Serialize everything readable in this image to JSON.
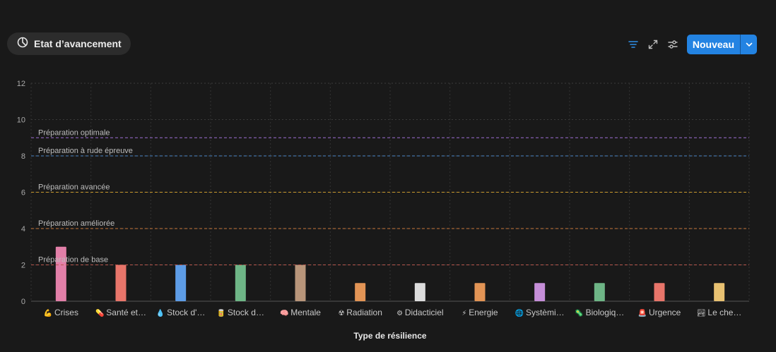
{
  "view": {
    "label": "Etat d’avancement",
    "icon": "pie-chart-icon"
  },
  "toolbar": {
    "filter_icon": "filter-icon",
    "expand_icon": "expand-icon",
    "settings_icon": "sliders-icon",
    "new_label": "Nouveau",
    "new_dropdown_icon": "chevron-down-icon",
    "accent": "#2383e2"
  },
  "chart_data": {
    "type": "bar",
    "xlabel": "Type de résilience",
    "ylabel": "",
    "ylim": [
      0,
      12
    ],
    "yticks": [
      0,
      2,
      4,
      6,
      8,
      10,
      12
    ],
    "grid": true,
    "categories": [
      {
        "icon": "💪",
        "label": "Crises",
        "value": 3,
        "color": "#e27fa8"
      },
      {
        "icon": "💊",
        "label": "Santé et…",
        "value": 2,
        "color": "#e8756a"
      },
      {
        "icon": "💧",
        "label": "Stock d'…",
        "value": 2,
        "color": "#5d9ce6"
      },
      {
        "icon": "🥫",
        "label": "Stock d…",
        "value": 2,
        "color": "#6eb586"
      },
      {
        "icon": "🧠",
        "label": "Mentale",
        "value": 2,
        "color": "#b8957a"
      },
      {
        "icon": "☢",
        "label": "Radiation",
        "value": 1,
        "color": "#e29455"
      },
      {
        "icon": "⚙",
        "label": "Didacticiel",
        "value": 1,
        "color": "#dcdcdc"
      },
      {
        "icon": "⚡",
        "label": "Energie",
        "value": 1,
        "color": "#e29455"
      },
      {
        "icon": "🌐",
        "label": "Systèmi…",
        "value": 1,
        "color": "#c58ed8"
      },
      {
        "icon": "🦠",
        "label": "Biologiq…",
        "value": 1,
        "color": "#6eb586"
      },
      {
        "icon": "🚨",
        "label": "Urgence",
        "value": 1,
        "color": "#e8756a"
      },
      {
        "icon": "🏞",
        "label": "Le che…",
        "value": 1,
        "color": "#e8c171"
      }
    ],
    "reference_lines": [
      {
        "label": "Préparation optimale",
        "value": 9,
        "color": "#9d6fd4"
      },
      {
        "label": "Préparation à rude épreuve",
        "value": 8,
        "color": "#4a86c8"
      },
      {
        "label": "Préparation avancée",
        "value": 6,
        "color": "#c99a2e"
      },
      {
        "label": "Préparation améliorée",
        "value": 4,
        "color": "#c8783a"
      },
      {
        "label": "Préparation de base",
        "value": 2,
        "color": "#b8574f"
      }
    ]
  }
}
